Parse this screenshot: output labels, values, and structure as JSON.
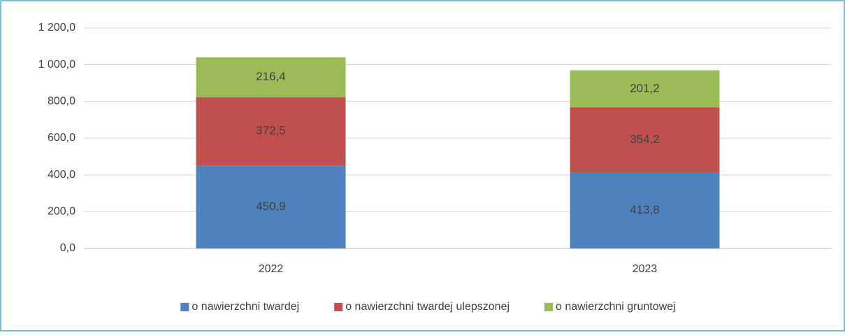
{
  "chart_data": {
    "type": "stacked_bar",
    "categories": [
      "2022",
      "2023"
    ],
    "series": [
      {
        "name": "o nawierzchni twardej",
        "color": "#4f81bd",
        "values": [
          450.9,
          413.8
        ],
        "value_labels": [
          "450,9",
          "413,8"
        ]
      },
      {
        "name": "o nawierzchni twardej ulepszonej",
        "color": "#c0504d",
        "values": [
          372.5,
          354.2
        ],
        "value_labels": [
          "372,5",
          "354,2"
        ]
      },
      {
        "name": "o nawierzchni gruntowej",
        "color": "#9bbb59",
        "values": [
          216.4,
          201.2
        ],
        "value_labels": [
          "216,4",
          "201,2"
        ]
      }
    ],
    "ylim": [
      0,
      1200
    ],
    "yticks": [
      {
        "value": 0,
        "label": "0,0"
      },
      {
        "value": 200,
        "label": "200,0"
      },
      {
        "value": 400,
        "label": "400,0"
      },
      {
        "value": 600,
        "label": "600,0"
      },
      {
        "value": 800,
        "label": "800,0"
      },
      {
        "value": 1000,
        "label": "1 000,0"
      },
      {
        "value": 1200,
        "label": "1 200,0"
      }
    ],
    "grid": true,
    "legend": "bottom"
  }
}
